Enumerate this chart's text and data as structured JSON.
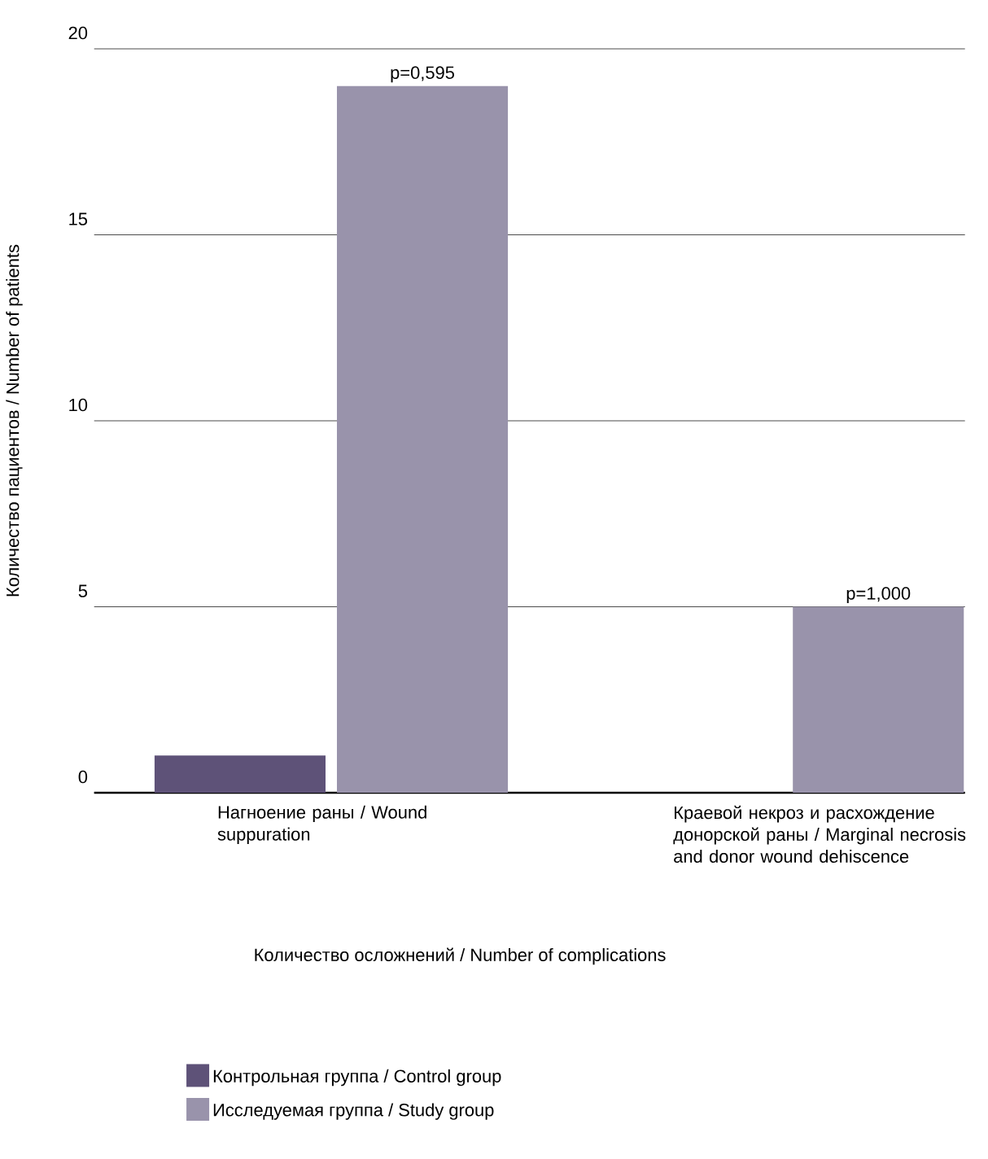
{
  "chart_data": {
    "type": "bar",
    "categories": [
      "Нагноение раны / Wound suppuration",
      "Краевой некроз и расхождение донорской раны / Marginal necrosis and donor wound dehiscence"
    ],
    "series": [
      {
        "name": "Контрольная группа / Control group",
        "color": "#5e5278",
        "values": [
          1,
          0
        ]
      },
      {
        "name": "Исследуемая группа / Study group",
        "color": "#9993ab",
        "values": [
          19,
          5
        ]
      }
    ],
    "xlabel": "Количество осложнений / Number of complications",
    "ylabel": "Количество пациентов / Number of patients",
    "ylim": [
      0,
      20
    ],
    "yticks": [
      0,
      5,
      10,
      15,
      20
    ],
    "grid": "y",
    "legend": "bottom",
    "annotations": [
      "p=0,595",
      "p=1,000"
    ]
  }
}
